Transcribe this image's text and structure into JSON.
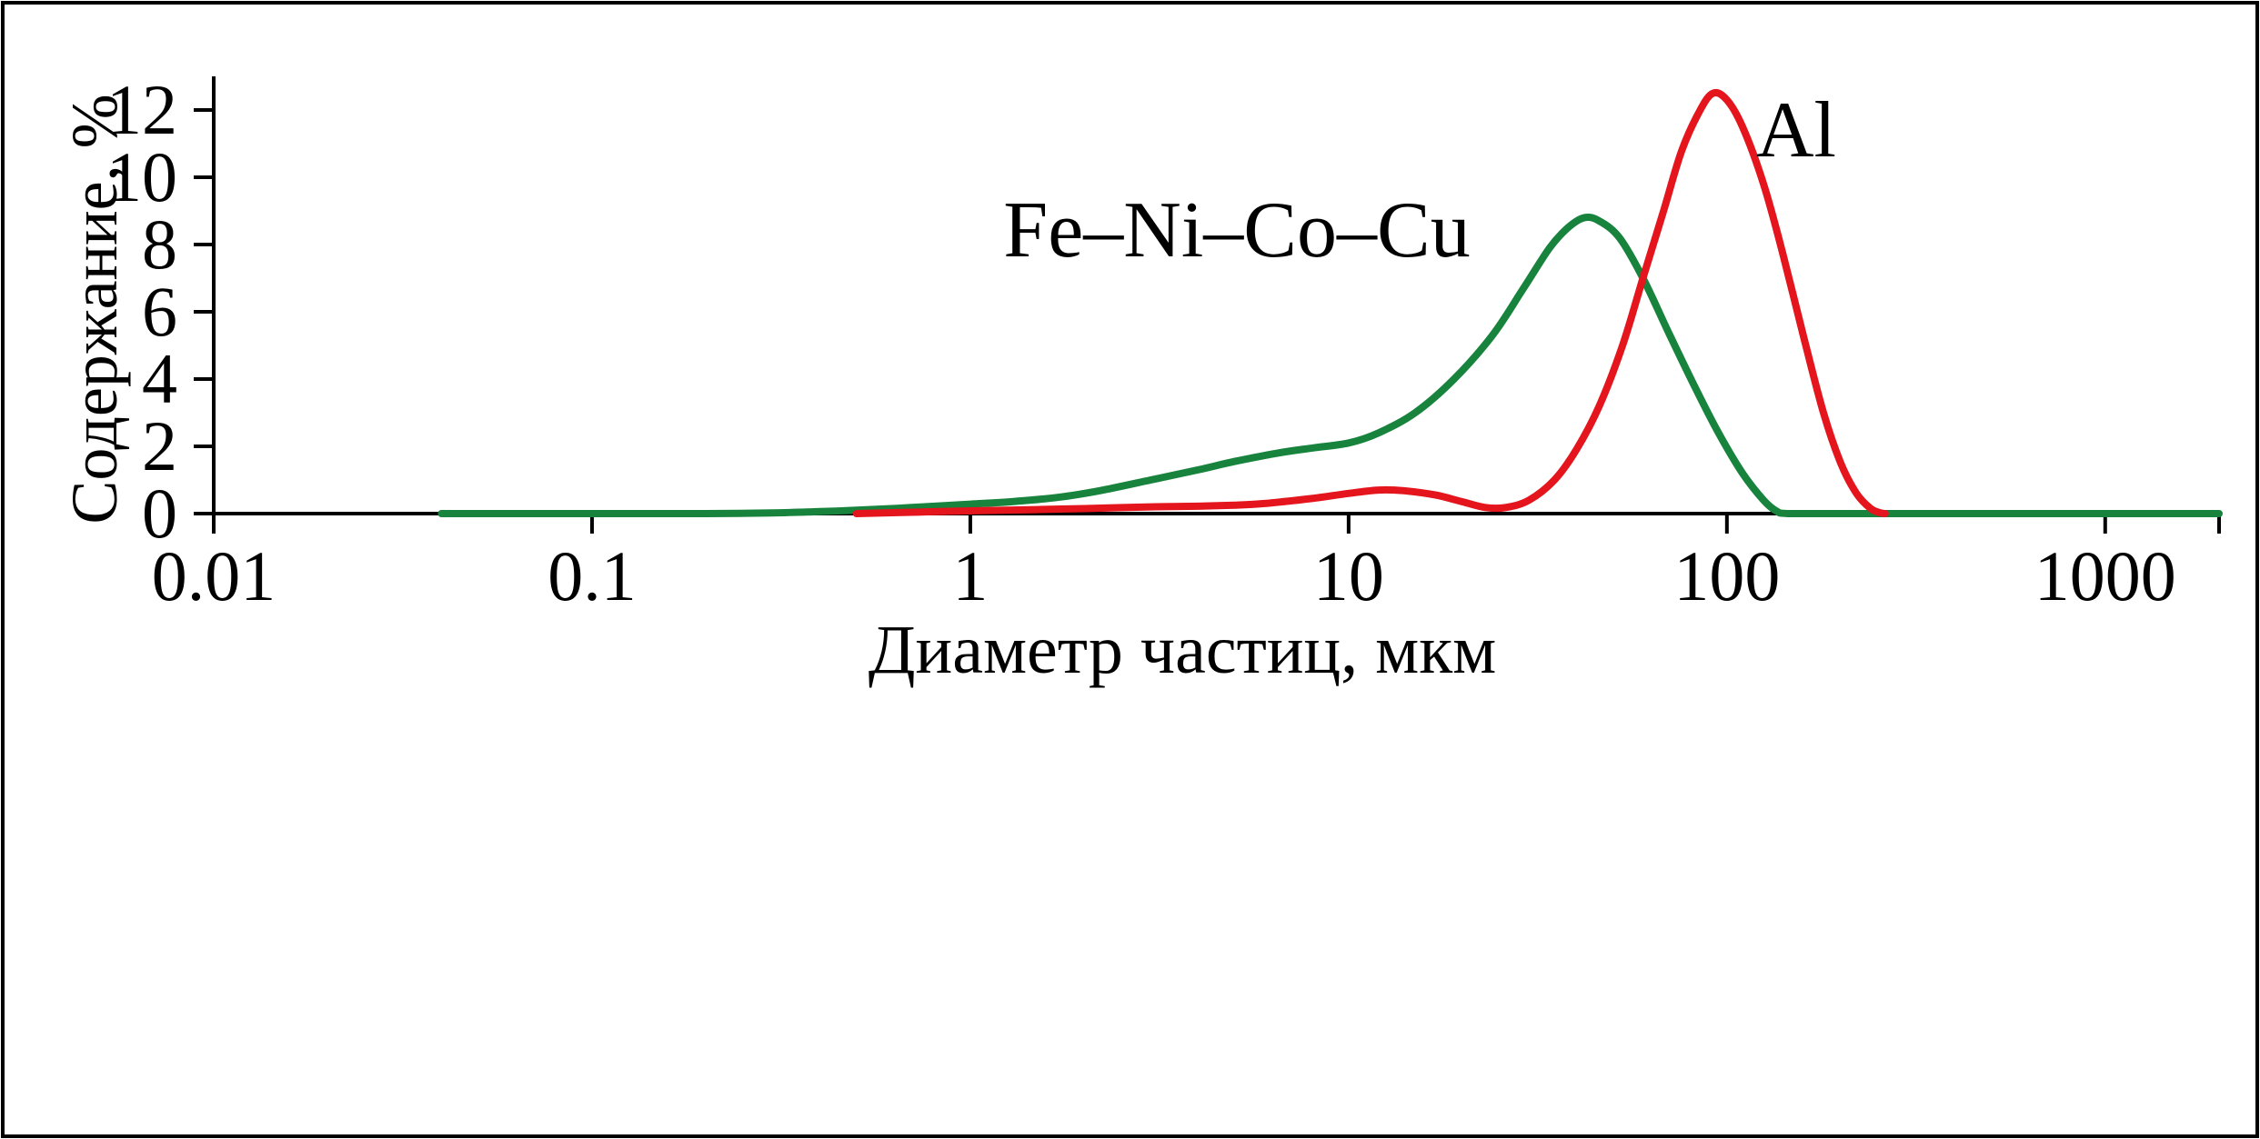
{
  "figure": {
    "background_color": "#ffffff",
    "border_color": "#000000"
  },
  "chart_data": {
    "type": "line",
    "title": "",
    "xlabel": "Диаметр частиц, мкм",
    "ylabel": "Содержание, %",
    "x_scale": "log",
    "xlim": [
      0.01,
      2000
    ],
    "ylim": [
      0,
      13
    ],
    "x_ticks": [
      0.01,
      0.1,
      1,
      10,
      100,
      1000
    ],
    "x_tick_labels": [
      "0.01",
      "0.1",
      "1",
      "10",
      "100",
      "1000"
    ],
    "y_ticks": [
      0,
      2,
      4,
      6,
      8,
      10,
      12
    ],
    "grid": false,
    "legend_position": "inline-annotations",
    "axis_color": "#000000",
    "series": [
      {
        "name": "Fe–Ni–Co–Cu",
        "color": "#17833c",
        "peak": {
          "x": 42,
          "y": 8.8
        },
        "points": [
          [
            0.04,
            0
          ],
          [
            0.07,
            0
          ],
          [
            0.1,
            0
          ],
          [
            0.15,
            0
          ],
          [
            0.2,
            0
          ],
          [
            0.3,
            0.02
          ],
          [
            0.4,
            0.06
          ],
          [
            0.5,
            0.1
          ],
          [
            0.7,
            0.18
          ],
          [
            1.0,
            0.28
          ],
          [
            1.3,
            0.36
          ],
          [
            1.7,
            0.48
          ],
          [
            2.2,
            0.68
          ],
          [
            3,
            1.0
          ],
          [
            4,
            1.3
          ],
          [
            5,
            1.55
          ],
          [
            6.5,
            1.8
          ],
          [
            8,
            1.95
          ],
          [
            10,
            2.1
          ],
          [
            12,
            2.4
          ],
          [
            15,
            3.0
          ],
          [
            19,
            4.0
          ],
          [
            24,
            5.3
          ],
          [
            29,
            6.7
          ],
          [
            34,
            7.9
          ],
          [
            38,
            8.5
          ],
          [
            42,
            8.8
          ],
          [
            46,
            8.7
          ],
          [
            52,
            8.2
          ],
          [
            60,
            7.0
          ],
          [
            70,
            5.4
          ],
          [
            82,
            3.8
          ],
          [
            95,
            2.4
          ],
          [
            110,
            1.2
          ],
          [
            125,
            0.4
          ],
          [
            135,
            0.08
          ],
          [
            145,
            0
          ],
          [
            200,
            0
          ],
          [
            400,
            0
          ],
          [
            800,
            0
          ],
          [
            1400,
            0
          ],
          [
            2000,
            0
          ]
        ]
      },
      {
        "name": "Al",
        "color": "#e4151c",
        "peak": {
          "x": 92,
          "y": 12.5
        },
        "points": [
          [
            0.5,
            0
          ],
          [
            0.7,
            0.04
          ],
          [
            1,
            0.08
          ],
          [
            1.5,
            0.12
          ],
          [
            2,
            0.15
          ],
          [
            3,
            0.2
          ],
          [
            4,
            0.22
          ],
          [
            5,
            0.25
          ],
          [
            6,
            0.3
          ],
          [
            8,
            0.45
          ],
          [
            10,
            0.6
          ],
          [
            12,
            0.7
          ],
          [
            14,
            0.68
          ],
          [
            17,
            0.55
          ],
          [
            20,
            0.35
          ],
          [
            23,
            0.18
          ],
          [
            26,
            0.18
          ],
          [
            30,
            0.4
          ],
          [
            35,
            1.0
          ],
          [
            40,
            1.9
          ],
          [
            46,
            3.2
          ],
          [
            53,
            5.0
          ],
          [
            60,
            7.0
          ],
          [
            68,
            9.0
          ],
          [
            76,
            10.8
          ],
          [
            85,
            12.0
          ],
          [
            92,
            12.5
          ],
          [
            100,
            12.3
          ],
          [
            110,
            11.5
          ],
          [
            125,
            9.8
          ],
          [
            140,
            7.8
          ],
          [
            160,
            5.2
          ],
          [
            180,
            3.0
          ],
          [
            200,
            1.5
          ],
          [
            220,
            0.6
          ],
          [
            240,
            0.15
          ],
          [
            255,
            0.02
          ],
          [
            262,
            0
          ]
        ]
      }
    ]
  }
}
